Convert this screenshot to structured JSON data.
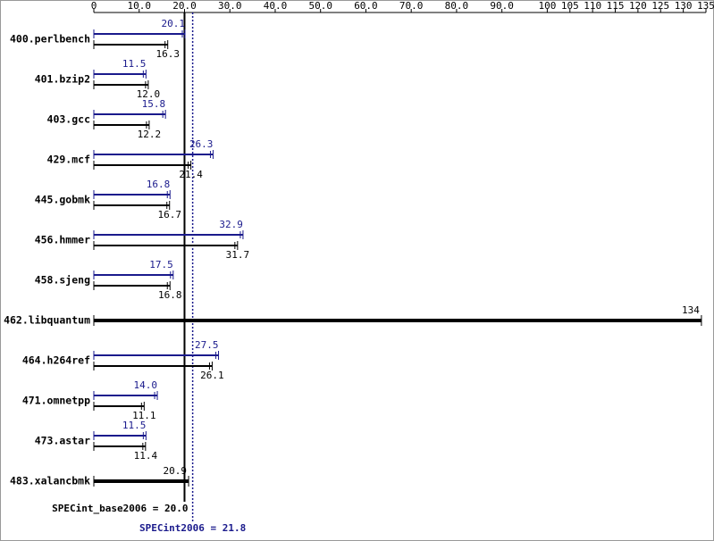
{
  "chart_data": {
    "type": "bar",
    "categories": [
      "400.perlbench",
      "401.bzip2",
      "403.gcc",
      "429.mcf",
      "445.gobmk",
      "456.hmmer",
      "458.sjeng",
      "462.libquantum",
      "464.h264ref",
      "471.omnetpp",
      "473.astar",
      "483.xalancbmk"
    ],
    "series": [
      {
        "color": "#1a1a8c",
        "values": [
          20.1,
          11.5,
          15.8,
          26.3,
          16.8,
          32.9,
          17.5,
          null,
          27.5,
          14.0,
          11.5,
          null
        ],
        "value_labels": [
          "20.1",
          "11.5",
          "15.8",
          "26.3",
          "16.8",
          "32.9",
          "17.5",
          null,
          "27.5",
          "14.0",
          "11.5",
          null
        ]
      },
      {
        "color": "#000000",
        "values": [
          16.3,
          12.0,
          12.2,
          21.4,
          16.7,
          31.7,
          16.8,
          134,
          26.1,
          11.1,
          11.4,
          20.9
        ],
        "value_labels": [
          "16.3",
          "12.0",
          "12.2",
          "21.4",
          "16.7",
          "31.7",
          "16.8",
          "134",
          "26.1",
          "11.1",
          "11.4",
          "20.9"
        ]
      }
    ],
    "reference_lines": [
      {
        "value": 20.0,
        "label": "SPECint_base2006 = 20.0",
        "color": "#000000"
      },
      {
        "value": 21.8,
        "label": "SPECint2006 = 21.8",
        "color": "#1a1a8c"
      }
    ],
    "xlim": [
      0,
      135
    ],
    "xticks": [
      0,
      {
        "value": 10,
        "label": "10.0"
      },
      {
        "value": 20,
        "label": "20.0"
      },
      {
        "value": 30,
        "label": "30.0"
      },
      {
        "value": 40,
        "label": "40.0"
      },
      {
        "value": 50,
        "label": "50.0"
      },
      {
        "value": 60,
        "label": "60.0"
      },
      {
        "value": 70,
        "label": "70.0"
      },
      {
        "value": 80,
        "label": "80.0"
      },
      {
        "value": 90,
        "label": "90.0"
      },
      100,
      105,
      110,
      115,
      120,
      125,
      130,
      135
    ]
  }
}
